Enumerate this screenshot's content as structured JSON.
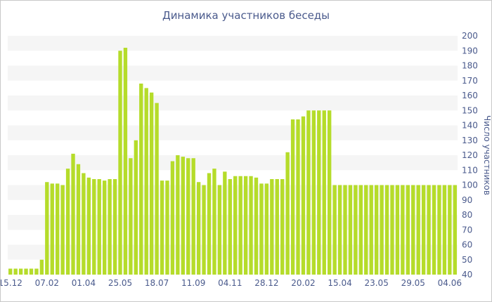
{
  "chart_data": {
    "type": "bar",
    "title": "Динамика участников беседы",
    "xlabel": "",
    "ylabel": "Число участников",
    "ylim": [
      40,
      200
    ],
    "yticks": [
      40,
      50,
      60,
      70,
      80,
      90,
      100,
      110,
      120,
      130,
      140,
      150,
      160,
      170,
      180,
      190,
      200
    ],
    "y_axis_side": "right",
    "grid": "alternating horizontal bands",
    "bar_color": "#b5dc2a",
    "band_color": "#f5f5f5",
    "text_color": "#4a5a8c",
    "x_tick_labels": [
      {
        "index": 0,
        "label": "15.12"
      },
      {
        "index": 7,
        "label": "07.02"
      },
      {
        "index": 14,
        "label": "01.04"
      },
      {
        "index": 21,
        "label": "25.05"
      },
      {
        "index": 28,
        "label": "18.07"
      },
      {
        "index": 35,
        "label": "11.09"
      },
      {
        "index": 42,
        "label": "04.11"
      },
      {
        "index": 49,
        "label": "28.12"
      },
      {
        "index": 56,
        "label": "20.02"
      },
      {
        "index": 63,
        "label": "15.04"
      },
      {
        "index": 70,
        "label": "23.05"
      },
      {
        "index": 77,
        "label": "29.05"
      },
      {
        "index": 84,
        "label": "04.06"
      }
    ],
    "values": [
      44,
      44,
      44,
      44,
      44,
      44,
      50,
      102,
      101,
      101,
      100,
      111,
      121,
      114,
      108,
      105,
      104,
      104,
      103,
      104,
      104,
      190,
      192,
      118,
      130,
      168,
      165,
      162,
      155,
      103,
      103,
      116,
      120,
      119,
      118,
      118,
      102,
      100,
      108,
      111,
      100,
      109,
      104,
      106,
      106,
      106,
      106,
      105,
      101,
      101,
      104,
      104,
      104,
      122,
      144,
      144,
      146,
      150,
      150,
      150,
      150,
      150,
      100,
      100,
      100,
      100,
      100,
      100,
      100,
      100,
      100,
      100,
      100,
      100,
      100,
      100,
      100,
      100,
      100,
      100,
      100,
      100,
      100,
      100,
      100,
      100
    ]
  }
}
